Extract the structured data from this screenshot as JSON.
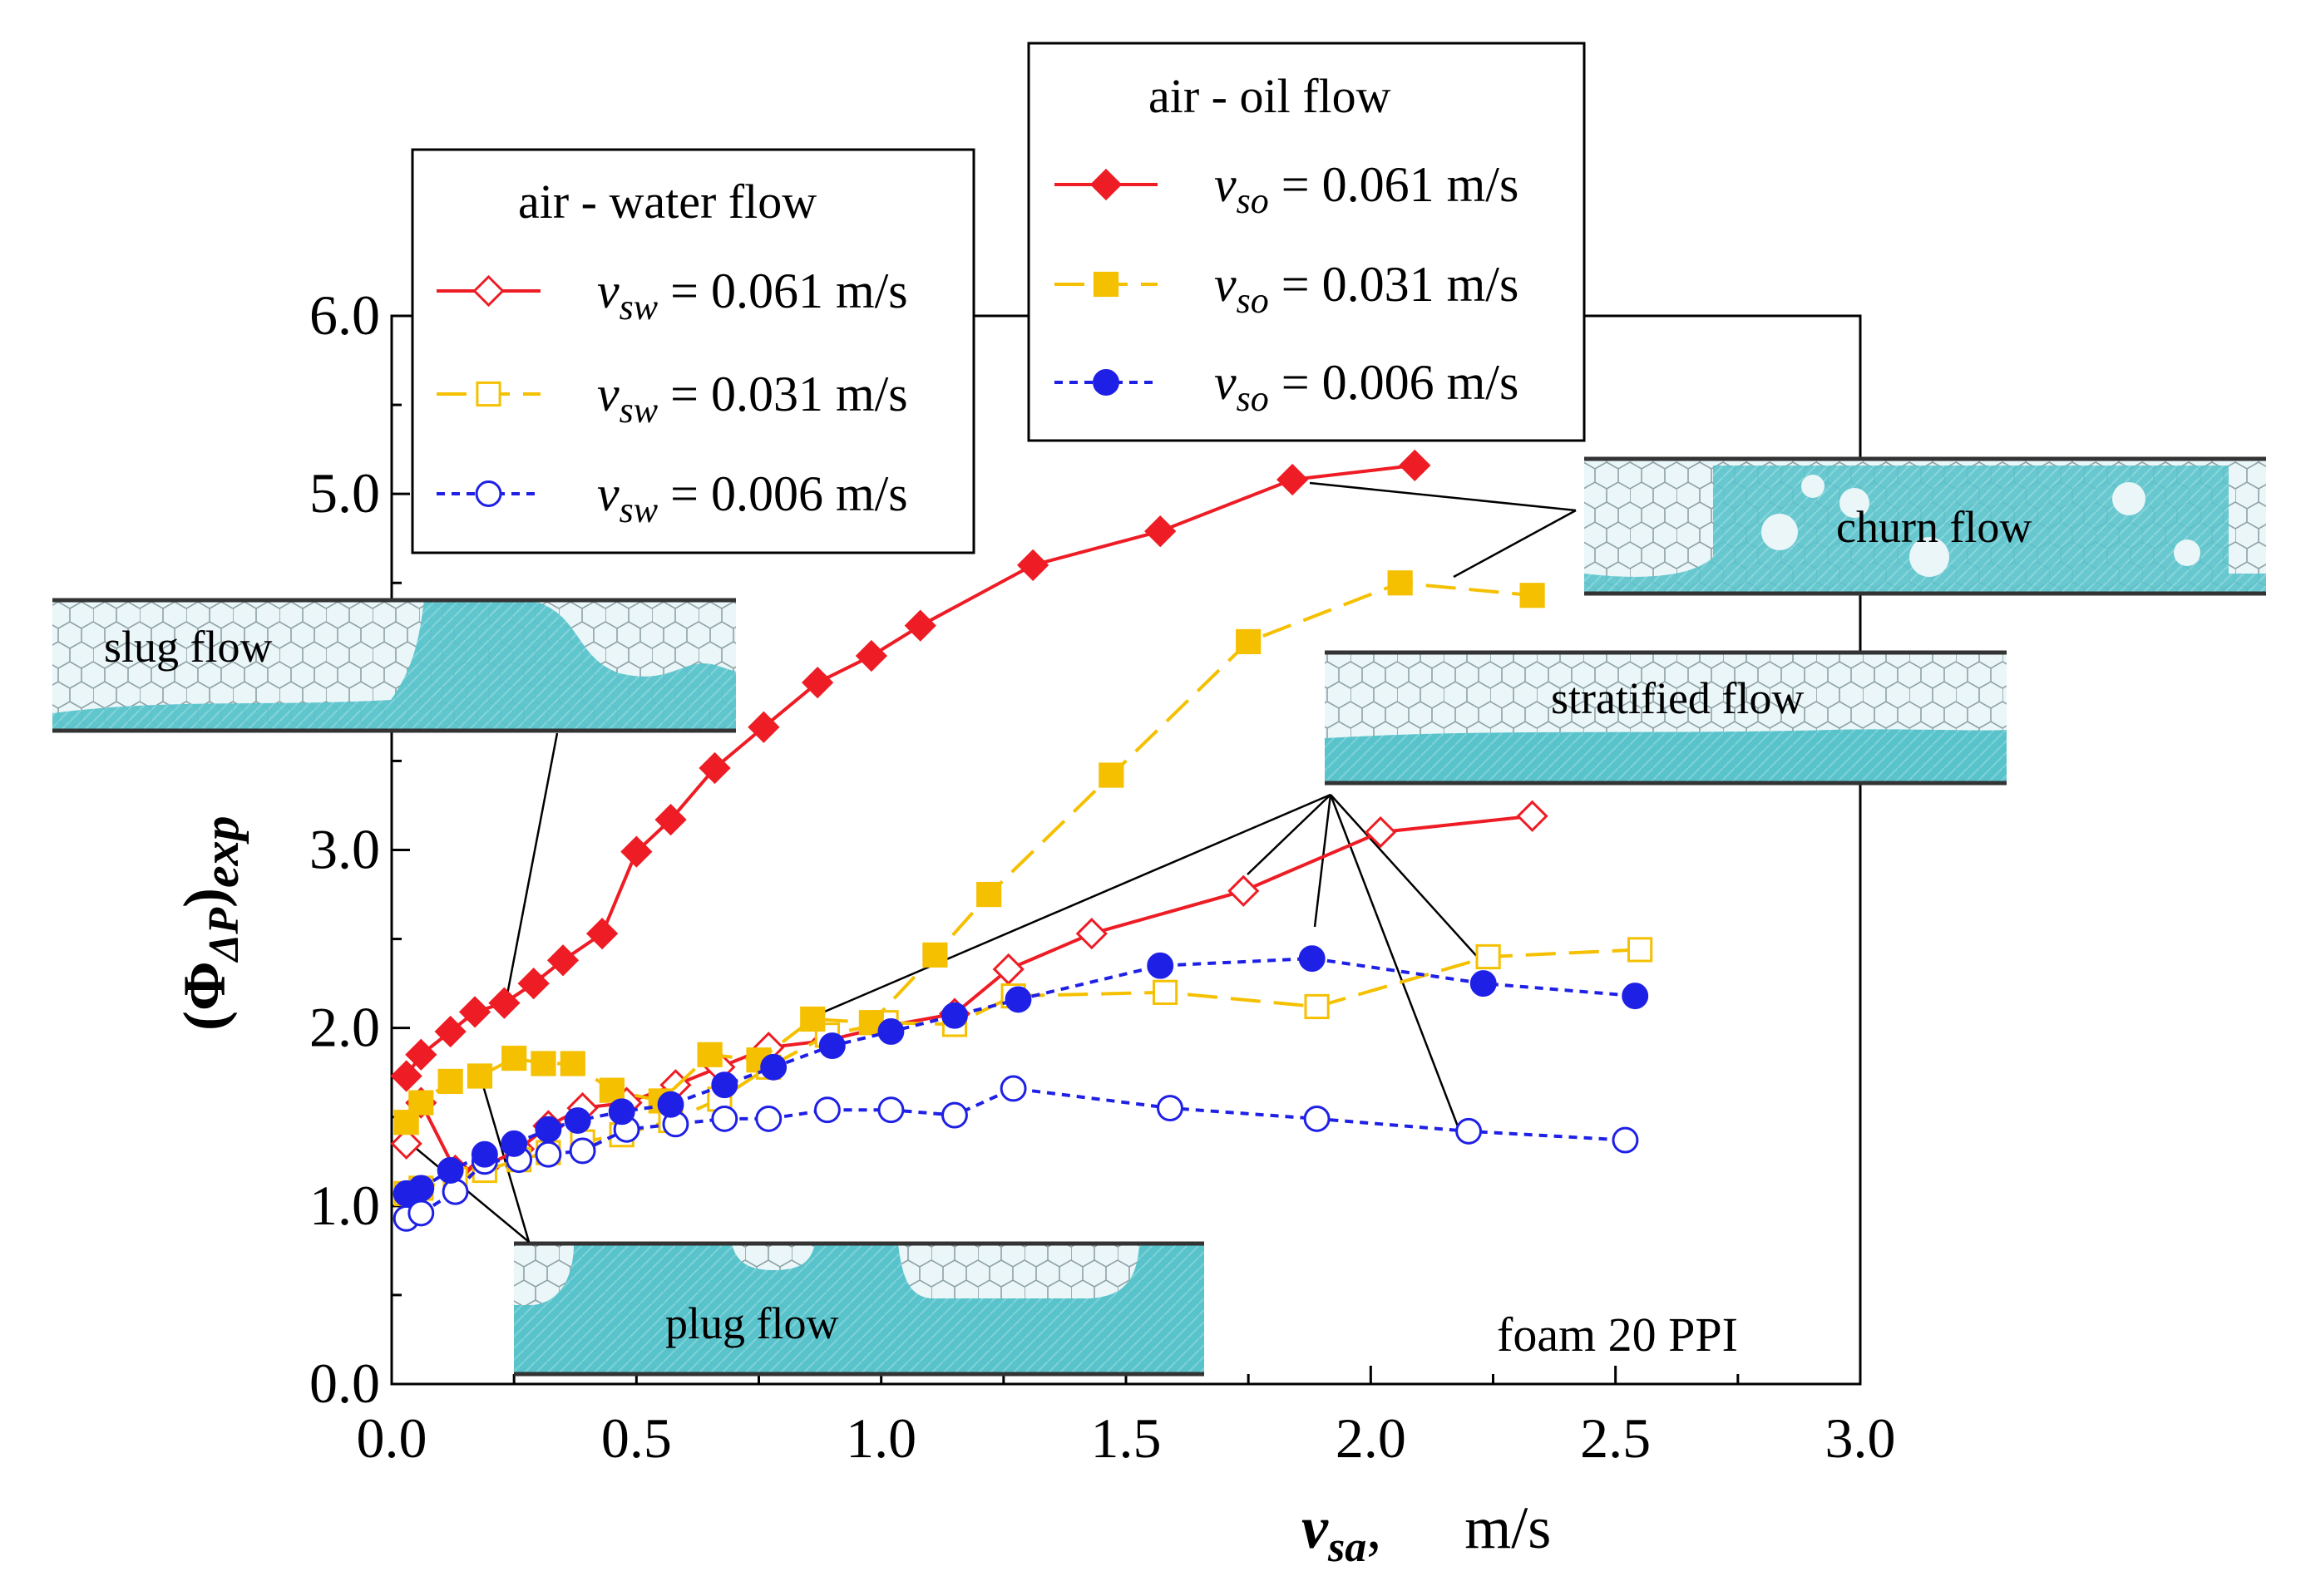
{
  "chart_data": {
    "type": "line",
    "xlabel_main": "v",
    "xlabel_sub": "sa",
    "xlabel_sep": ",",
    "xlabel_unit": "m/s",
    "ylabel_main": "(Φ",
    "ylabel_sub1": "ΔP",
    "ylabel_close": ")",
    "ylabel_sub2": "exp",
    "xlim": [
      0,
      3.0
    ],
    "ylim": [
      0,
      6.0
    ],
    "xticks": [
      "0.0",
      "0.5",
      "1.0",
      "1.5",
      "2.0",
      "2.5",
      "3.0"
    ],
    "yticks": [
      "0.0",
      "1.0",
      "2.0",
      "3.0",
      "4.0",
      "5.0",
      "6.0"
    ],
    "grid": false,
    "annotation": "foam 20 PPI",
    "legend_water_title": "air - water flow",
    "legend_oil_title": "air - oil flow",
    "series": [
      {
        "group": "water",
        "symbol": "v",
        "sub": "sw",
        "value_text": " = 0.061 m/s",
        "color": "#ee1c24",
        "marker": "diamond",
        "filled": false,
        "dash": "solid",
        "x": [
          0.03,
          0.06,
          0.13,
          0.19,
          0.26,
          0.32,
          0.39,
          0.48,
          0.58,
          0.67,
          0.77,
          0.89,
          1.01,
          1.15,
          1.26,
          1.43,
          1.74,
          2.02,
          2.33
        ],
        "y": [
          1.35,
          1.58,
          1.2,
          1.22,
          1.32,
          1.45,
          1.55,
          1.58,
          1.68,
          1.78,
          1.89,
          1.93,
          2.01,
          2.08,
          2.33,
          2.53,
          2.77,
          3.1,
          3.19
        ]
      },
      {
        "group": "water",
        "symbol": "v",
        "sub": "sw",
        "value_text": " = 0.031 m/s",
        "color": "#f5c000",
        "marker": "square",
        "filled": false,
        "dash": "long",
        "x": [
          0.03,
          0.06,
          0.13,
          0.19,
          0.26,
          0.32,
          0.39,
          0.47,
          0.57,
          0.67,
          0.77,
          0.89,
          1.01,
          1.15,
          1.27,
          1.58,
          1.89,
          2.24,
          2.55
        ],
        "y": [
          1.07,
          1.1,
          1.15,
          1.2,
          1.26,
          1.3,
          1.36,
          1.4,
          1.48,
          1.6,
          1.78,
          1.96,
          2.03,
          2.02,
          2.18,
          2.2,
          2.12,
          2.4,
          2.44
        ]
      },
      {
        "group": "water",
        "symbol": "v",
        "sub": "sw",
        "value_text": " = 0.006 m/s",
        "color": "#1f20e6",
        "marker": "circle",
        "filled": false,
        "dash": "dot",
        "x": [
          0.03,
          0.06,
          0.13,
          0.19,
          0.26,
          0.32,
          0.39,
          0.48,
          0.58,
          0.68,
          0.77,
          0.89,
          1.02,
          1.15,
          1.27,
          1.59,
          1.89,
          2.2,
          2.52
        ],
        "y": [
          0.93,
          0.96,
          1.08,
          1.25,
          1.26,
          1.29,
          1.31,
          1.43,
          1.46,
          1.49,
          1.49,
          1.54,
          1.54,
          1.51,
          1.66,
          1.55,
          1.49,
          1.42,
          1.37
        ]
      },
      {
        "group": "oil",
        "symbol": "v",
        "sub": "so",
        "value_text": " = 0.061 m/s",
        "color": "#ee1c24",
        "marker": "diamond",
        "filled": true,
        "dash": "solid",
        "x": [
          0.03,
          0.06,
          0.12,
          0.17,
          0.23,
          0.29,
          0.35,
          0.43,
          0.5,
          0.57,
          0.66,
          0.76,
          0.87,
          0.98,
          1.08,
          1.31,
          1.57,
          1.84,
          2.09
        ],
        "y": [
          1.73,
          1.85,
          1.98,
          2.09,
          2.14,
          2.25,
          2.38,
          2.53,
          2.99,
          3.17,
          3.46,
          3.69,
          3.94,
          4.09,
          4.26,
          4.6,
          4.79,
          5.08,
          5.16
        ]
      },
      {
        "group": "oil",
        "symbol": "v",
        "sub": "so",
        "value_text": " = 0.031 m/s",
        "color": "#f5c000",
        "marker": "square",
        "filled": true,
        "dash": "long",
        "x": [
          0.03,
          0.06,
          0.12,
          0.18,
          0.25,
          0.31,
          0.37,
          0.45,
          0.55,
          0.65,
          0.75,
          0.86,
          0.98,
          1.11,
          1.22,
          1.47,
          1.75,
          2.06,
          2.33
        ],
        "y": [
          1.47,
          1.58,
          1.7,
          1.73,
          1.83,
          1.8,
          1.8,
          1.65,
          1.59,
          1.85,
          1.82,
          2.05,
          2.03,
          2.41,
          2.75,
          3.42,
          4.17,
          4.5,
          4.43
        ]
      },
      {
        "group": "oil",
        "symbol": "v",
        "sub": "so",
        "value_text": " = 0.006 m/s",
        "color": "#1f20e6",
        "marker": "circle",
        "filled": true,
        "dash": "dot",
        "x": [
          0.03,
          0.06,
          0.12,
          0.19,
          0.25,
          0.32,
          0.38,
          0.47,
          0.57,
          0.68,
          0.78,
          0.9,
          1.02,
          1.15,
          1.28,
          1.57,
          1.88,
          2.23,
          2.54
        ],
        "y": [
          1.07,
          1.1,
          1.2,
          1.29,
          1.35,
          1.43,
          1.48,
          1.53,
          1.57,
          1.68,
          1.78,
          1.9,
          1.98,
          2.07,
          2.16,
          2.35,
          2.39,
          2.25,
          2.18
        ]
      }
    ],
    "regimes": [
      {
        "name": "slug flow"
      },
      {
        "name": "plug flow"
      },
      {
        "name": "churn flow"
      },
      {
        "name": "stratified flow"
      }
    ]
  }
}
